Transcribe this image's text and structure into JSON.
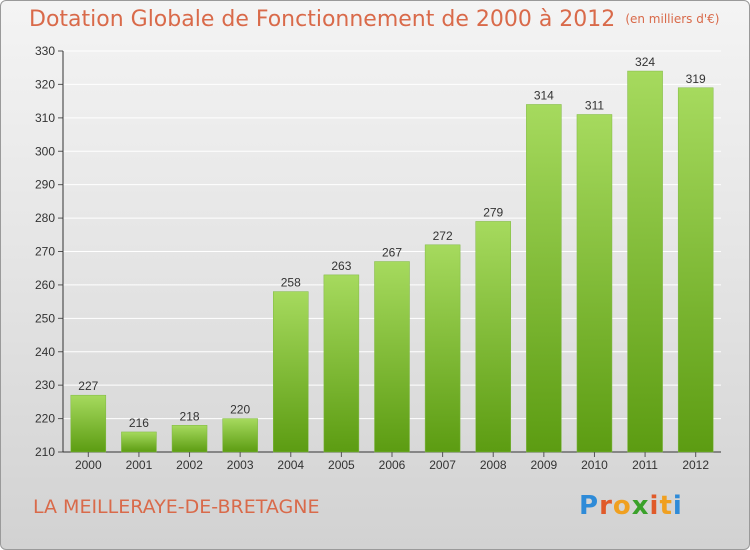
{
  "header": {
    "title": "Dotation Globale de Fonctionnement de 2000 à 2012",
    "unit": "(en milliers d'€)"
  },
  "footer": {
    "commune": "LA MEILLERAYE-DE-BRETAGNE",
    "logo": "Proxiti",
    "logo_colors": [
      "#2e8bd8",
      "#e05a2a",
      "#f0a020",
      "#3aa12a",
      "#e05a2a",
      "#f0a020",
      "#2e8bd8"
    ]
  },
  "colors": {
    "bar_top": "#a6da5e",
    "bar_bottom": "#5c9c12",
    "title": "#d96a4a",
    "grid": "#ffffff"
  },
  "chart_data": {
    "type": "bar",
    "categories": [
      "2000",
      "2001",
      "2002",
      "2003",
      "2004",
      "2005",
      "2006",
      "2007",
      "2008",
      "2009",
      "2010",
      "2011",
      "2012"
    ],
    "values": [
      227,
      216,
      218,
      220,
      258,
      263,
      267,
      272,
      279,
      314,
      311,
      324,
      319
    ],
    "ylim": [
      210,
      330
    ],
    "yticks": [
      210,
      220,
      230,
      240,
      250,
      260,
      270,
      280,
      290,
      300,
      310,
      320,
      330
    ],
    "grid": true
  }
}
